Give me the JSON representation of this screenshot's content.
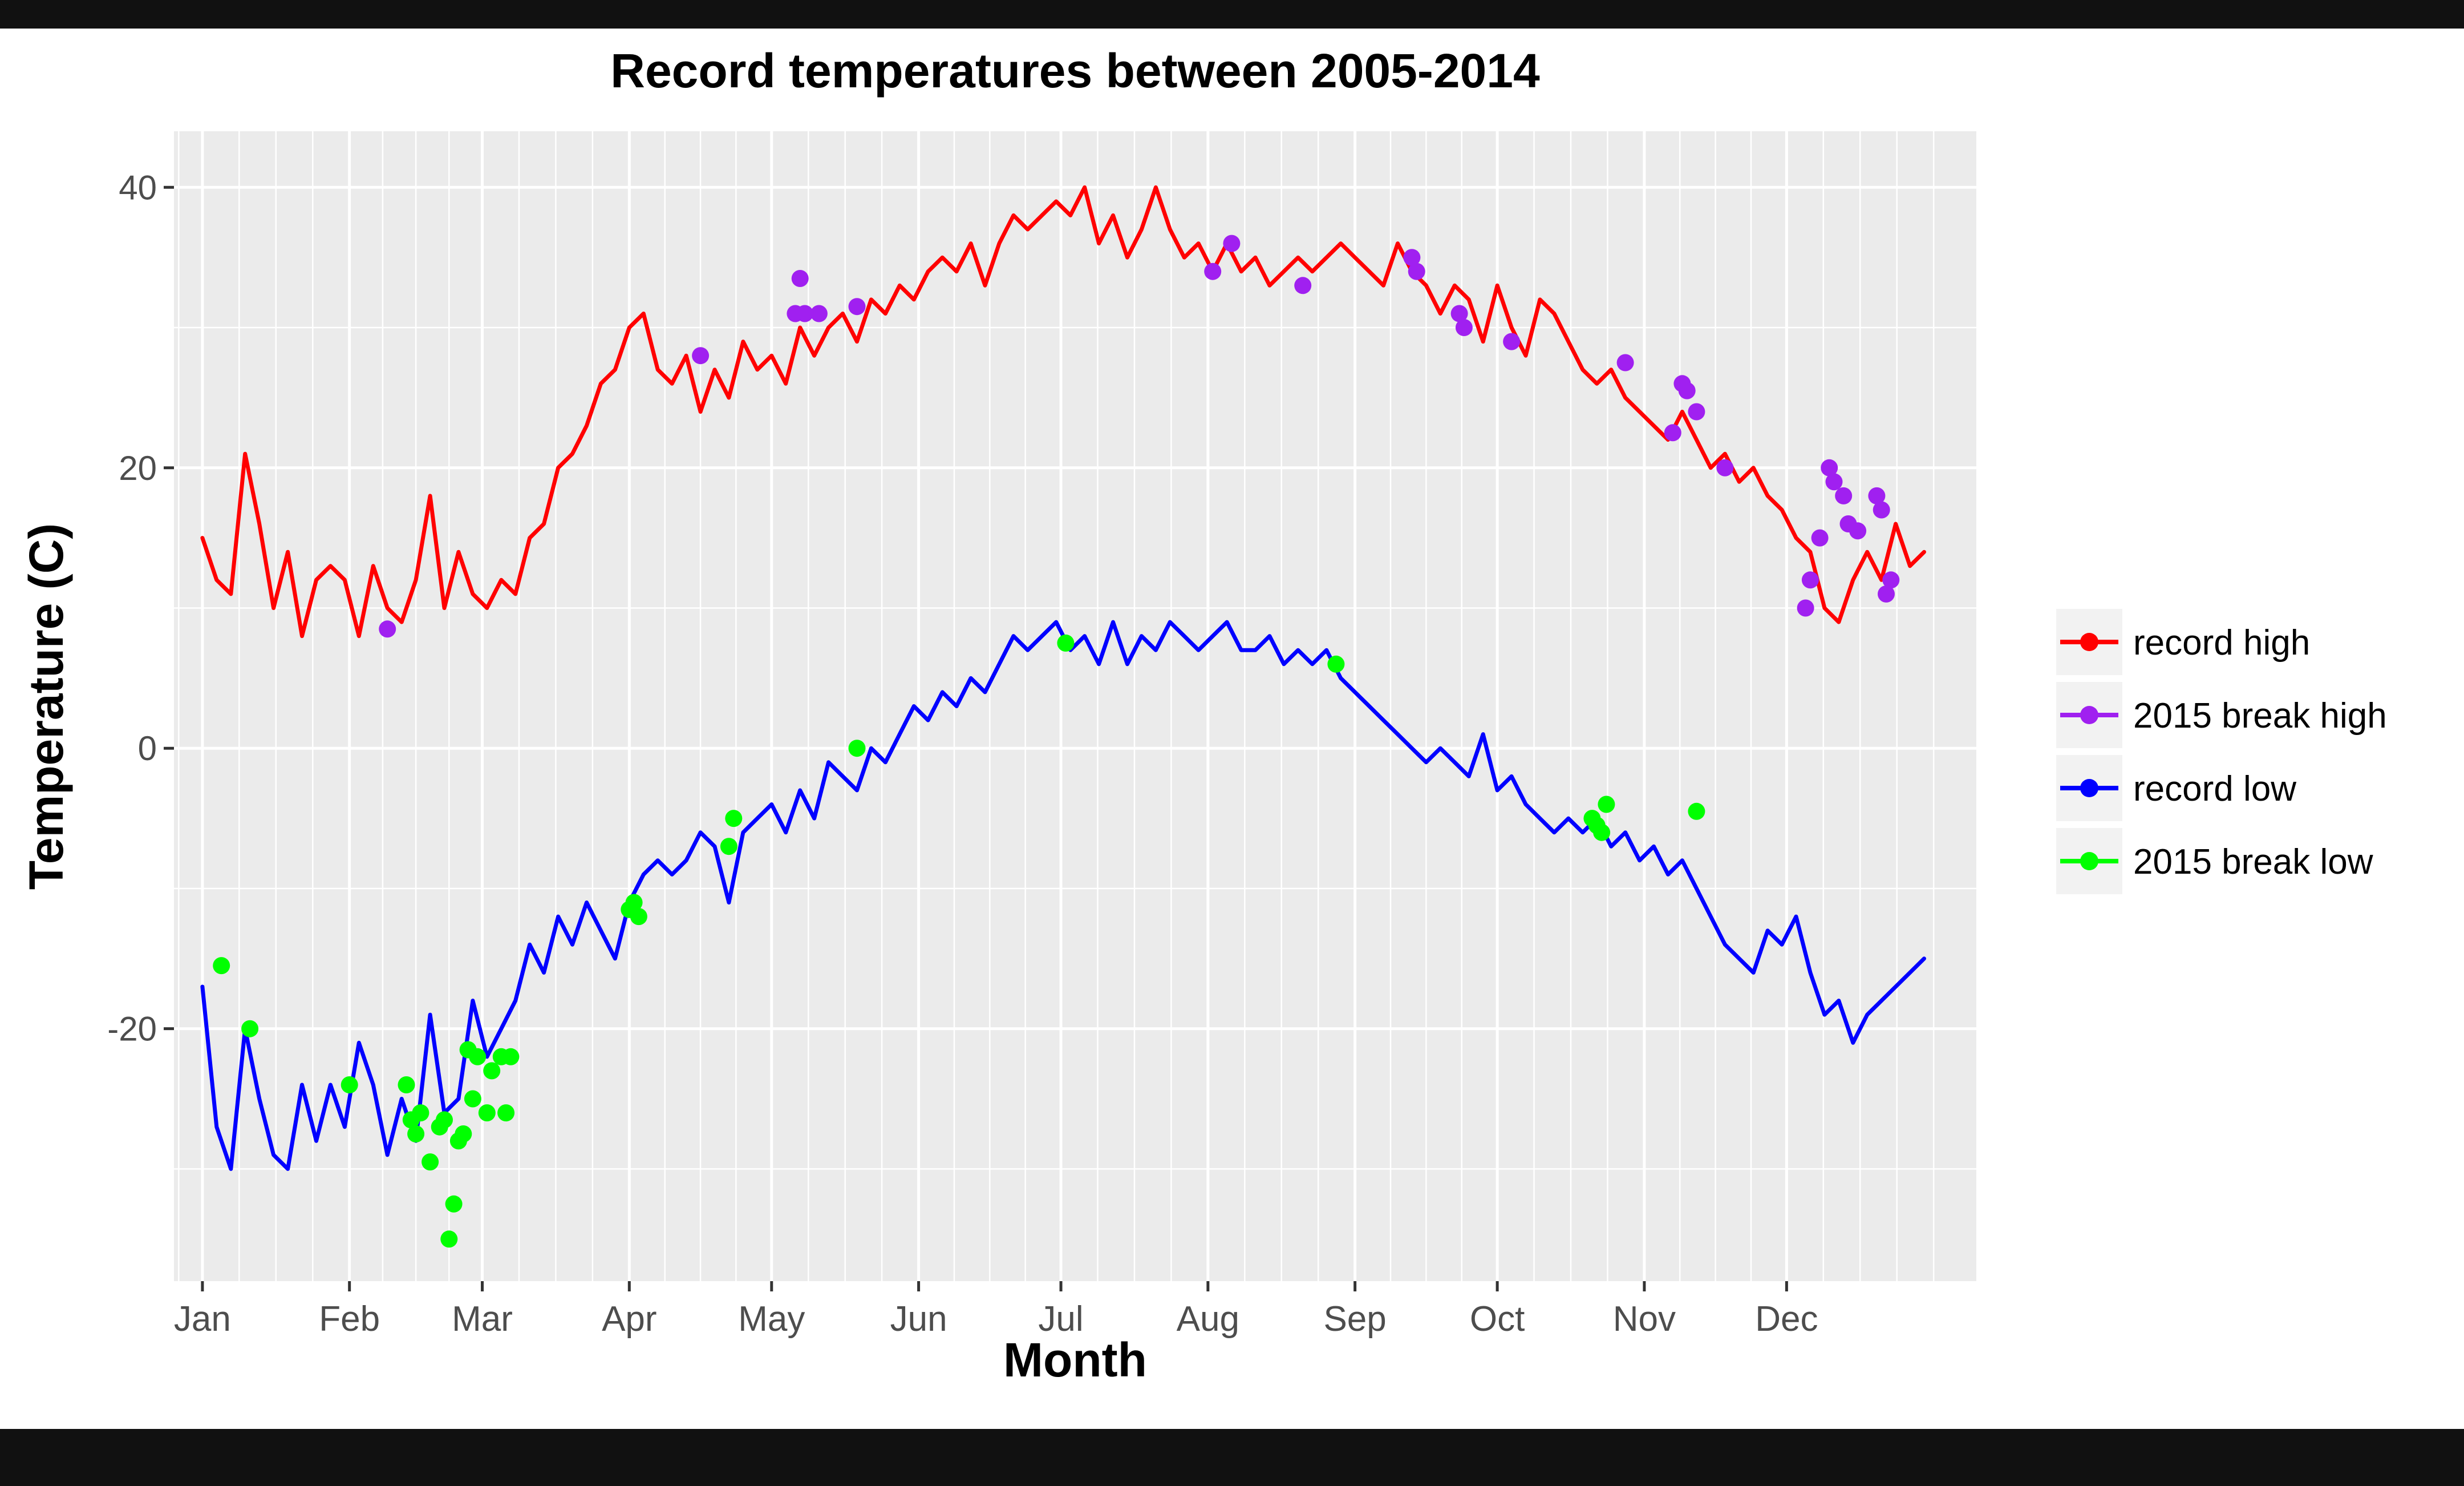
{
  "chart_data": {
    "type": "line",
    "title": "Record temperatures between 2005-2014",
    "xlabel": "Month",
    "ylabel": "Temperature (C)",
    "x_unit": "day of year",
    "xlim": [
      -5,
      375
    ],
    "ylim": [
      -38,
      44
    ],
    "y_ticks": [
      -20,
      0,
      20,
      40
    ],
    "y_tick_labels": [
      "-20",
      "0",
      "20",
      "40"
    ],
    "x_ticks": [
      1,
      32,
      60,
      91,
      121,
      152,
      182,
      213,
      244,
      274,
      305,
      335
    ],
    "x_tick_labels": [
      "Jan",
      "Feb",
      "Mar",
      "Apr",
      "May",
      "Jun",
      "Jul",
      "Aug",
      "Sep",
      "Oct",
      "Nov",
      "Dec"
    ],
    "grid": true,
    "legend_position": "right",
    "colors": {
      "record_high": "#ff0000",
      "break_high": "#a020f0",
      "record_low": "#0000ff",
      "break_low": "#00ff00",
      "panel": "#ebebeb",
      "grid": "#ffffff"
    },
    "series": [
      {
        "name": "record high",
        "kind": "line",
        "color": "#ff0000",
        "x": [
          1,
          4,
          7,
          10,
          13,
          16,
          19,
          22,
          25,
          28,
          31,
          34,
          37,
          40,
          43,
          46,
          49,
          52,
          55,
          58,
          61,
          64,
          67,
          70,
          73,
          76,
          79,
          82,
          85,
          88,
          91,
          94,
          97,
          100,
          103,
          106,
          109,
          112,
          115,
          118,
          121,
          124,
          127,
          130,
          133,
          136,
          139,
          142,
          145,
          148,
          151,
          154,
          157,
          160,
          163,
          166,
          169,
          172,
          175,
          178,
          181,
          184,
          187,
          190,
          193,
          196,
          199,
          202,
          205,
          208,
          211,
          214,
          217,
          220,
          223,
          226,
          229,
          232,
          235,
          238,
          241,
          244,
          247,
          250,
          253,
          256,
          259,
          262,
          265,
          268,
          271,
          274,
          277,
          280,
          283,
          286,
          289,
          292,
          295,
          298,
          301,
          304,
          307,
          310,
          313,
          316,
          319,
          322,
          325,
          328,
          331,
          334,
          337,
          340,
          343,
          346,
          349,
          352,
          355,
          358,
          361,
          364
        ],
        "y": [
          15,
          12,
          11,
          21,
          16,
          10,
          14,
          8,
          12,
          13,
          12,
          8,
          13,
          10,
          9,
          12,
          18,
          10,
          14,
          11,
          10,
          12,
          11,
          15,
          16,
          20,
          21,
          23,
          26,
          27,
          30,
          31,
          27,
          26,
          28,
          24,
          27,
          25,
          29,
          27,
          28,
          26,
          30,
          28,
          30,
          31,
          29,
          32,
          31,
          33,
          32,
          34,
          35,
          34,
          36,
          33,
          36,
          38,
          37,
          38,
          39,
          38,
          40,
          36,
          38,
          35,
          37,
          40,
          37,
          35,
          36,
          34,
          36,
          34,
          35,
          33,
          34,
          35,
          34,
          35,
          36,
          35,
          34,
          33,
          36,
          34,
          33,
          31,
          33,
          32,
          29,
          33,
          30,
          28,
          32,
          31,
          29,
          27,
          26,
          27,
          25,
          24,
          23,
          22,
          24,
          22,
          20,
          21,
          19,
          20,
          18,
          17,
          15,
          14,
          10,
          9,
          12,
          14,
          12,
          16,
          13,
          14
        ],
        "width": 7
      },
      {
        "name": "2015 break high",
        "kind": "points",
        "color": "#a020f0",
        "x": [
          40,
          106,
          126,
          127,
          128,
          131,
          139,
          214,
          218,
          233,
          256,
          257,
          266,
          267,
          277,
          301,
          311,
          313,
          314,
          316,
          322,
          339,
          340,
          342,
          344,
          345,
          347,
          348,
          350,
          354,
          355,
          356,
          357
        ],
        "y": [
          8.5,
          28,
          31,
          33.5,
          31,
          31,
          31.5,
          34,
          36,
          33,
          35,
          34,
          31,
          30,
          29,
          27.5,
          22.5,
          26,
          25.5,
          24,
          20,
          10,
          12,
          15,
          20,
          19,
          18,
          16,
          15.5,
          18,
          17,
          11,
          12
        ],
        "size": 15
      },
      {
        "name": "record low",
        "kind": "line",
        "color": "#0000ff",
        "x": [
          1,
          4,
          7,
          10,
          13,
          16,
          19,
          22,
          25,
          28,
          31,
          34,
          37,
          40,
          43,
          46,
          49,
          52,
          55,
          58,
          61,
          64,
          67,
          70,
          73,
          76,
          79,
          82,
          85,
          88,
          91,
          94,
          97,
          100,
          103,
          106,
          109,
          112,
          115,
          118,
          121,
          124,
          127,
          130,
          133,
          136,
          139,
          142,
          145,
          148,
          151,
          154,
          157,
          160,
          163,
          166,
          169,
          172,
          175,
          178,
          181,
          184,
          187,
          190,
          193,
          196,
          199,
          202,
          205,
          208,
          211,
          214,
          217,
          220,
          223,
          226,
          229,
          232,
          235,
          238,
          241,
          244,
          247,
          250,
          253,
          256,
          259,
          262,
          265,
          268,
          271,
          274,
          277,
          280,
          283,
          286,
          289,
          292,
          295,
          298,
          301,
          304,
          307,
          310,
          313,
          316,
          319,
          322,
          325,
          328,
          331,
          334,
          337,
          340,
          343,
          346,
          349,
          352,
          355,
          358,
          361,
          364
        ],
        "y": [
          -17,
          -27,
          -30,
          -20,
          -25,
          -29,
          -30,
          -24,
          -28,
          -24,
          -27,
          -21,
          -24,
          -29,
          -25,
          -28,
          -19,
          -26,
          -25,
          -18,
          -22,
          -20,
          -18,
          -14,
          -16,
          -12,
          -14,
          -11,
          -13,
          -15,
          -11,
          -9,
          -8,
          -9,
          -8,
          -6,
          -7,
          -11,
          -6,
          -5,
          -4,
          -6,
          -3,
          -5,
          -1,
          -2,
          -3,
          0,
          -1,
          1,
          3,
          2,
          4,
          3,
          5,
          4,
          6,
          8,
          7,
          8,
          9,
          7,
          8,
          6,
          9,
          6,
          8,
          7,
          9,
          8,
          7,
          8,
          9,
          7,
          7,
          8,
          6,
          7,
          6,
          7,
          5,
          4,
          3,
          2,
          1,
          0,
          -1,
          0,
          -1,
          -2,
          1,
          -3,
          -2,
          -4,
          -5,
          -6,
          -5,
          -6,
          -5,
          -7,
          -6,
          -8,
          -7,
          -9,
          -8,
          -10,
          -12,
          -14,
          -15,
          -16,
          -13,
          -14,
          -12,
          -16,
          -19,
          -18,
          -21,
          -19,
          -18,
          -17,
          -16,
          -15
        ],
        "width": 7
      },
      {
        "name": "2015 break low",
        "kind": "points",
        "color": "#00ff00",
        "x": [
          5,
          11,
          32,
          44,
          45,
          46,
          47,
          49,
          51,
          52,
          53,
          54,
          55,
          56,
          57,
          58,
          59,
          61,
          62,
          64,
          65,
          66,
          91,
          92,
          93,
          112,
          113,
          139,
          183,
          240,
          294,
          295,
          296,
          297,
          316
        ],
        "y": [
          -15.5,
          -20,
          -24,
          -24,
          -26.5,
          -27.5,
          -26,
          -29.5,
          -27,
          -26.5,
          -35,
          -32.5,
          -28,
          -27.5,
          -21.5,
          -25,
          -22,
          -26,
          -23,
          -22,
          -26,
          -22,
          -11.5,
          -11,
          -12,
          -7,
          -5,
          0,
          7.5,
          6,
          -5,
          -5.5,
          -6,
          -4,
          -4.5
        ],
        "size": 15
      }
    ]
  }
}
